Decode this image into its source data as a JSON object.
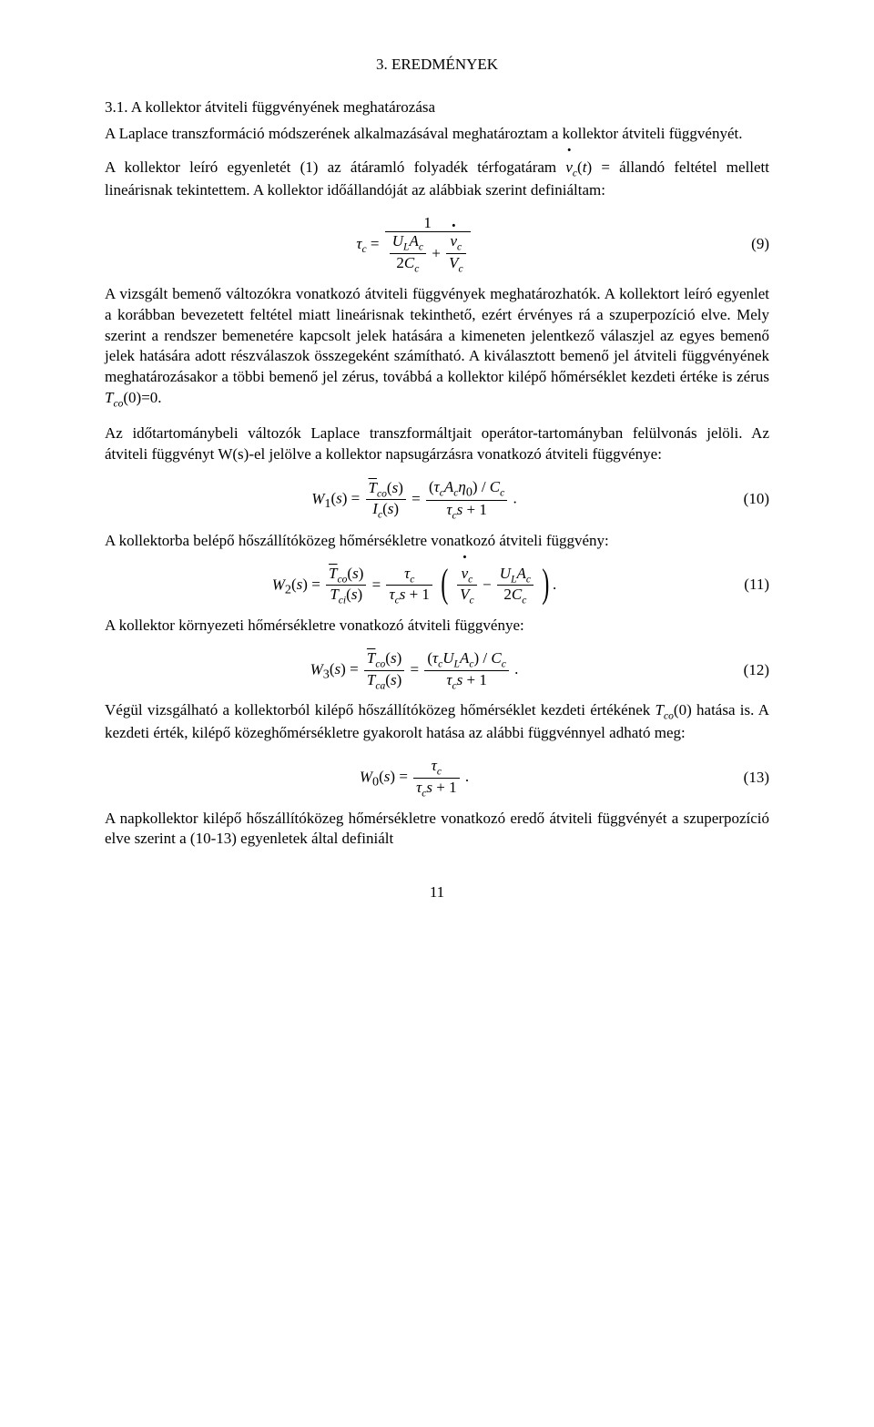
{
  "section_number": "3. EREDMÉNYEK",
  "subsection": "3.1. A kollektor átviteli függvényének meghatározása",
  "p1": "A Laplace transzformáció módszerének alkalmazásával meghatároztam a kollektor átviteli függvényét.",
  "p2a": "A kollektor leíró egyenletét (1) az átáramló folyadék térfogatáram ",
  "p2b": " állandó feltétel mellett lineárisnak tekintettem. A kollektor időállandóját az alábbiak szerint definiáltam:",
  "eq9_num": "(9)",
  "p3": "A vizsgált bemenő változókra vonatkozó átviteli függvények meghatározhatók. A kollektort leíró egyenlet a korábban bevezetett feltétel miatt lineárisnak tekinthető, ezért érvényes rá a szuperpozíció elve. Mely szerint a rendszer bemenetére kapcsolt jelek hatására a kimeneten jelentkező válaszjel az egyes bemenő jelek hatására adott részválaszok összegeként számítható. A kiválasztott bemenő jel átviteli függvényének meghatározásakor a többi bemenő jel zérus, továbbá a kollektor kilépő hőmérséklet kezdeti értéke is zérus ",
  "p3_tail": "(0)=0.",
  "p4": "Az időtartománybeli változók Laplace transzformáltjait operátor-tartományban felülvonás jelöli. Az átviteli függvényt W(s)-el jelölve a kollektor napsugárzásra vonatkozó átviteli függvénye:",
  "eq10_num": "(10)",
  "p5": "A kollektorba belépő hőszállítóközeg hőmérsékletre vonatkozó átviteli függvény:",
  "eq11_num": "(11)",
  "p6": "A kollektor környezeti hőmérsékletre vonatkozó átviteli függvénye:",
  "eq12_num": "(12)",
  "p7a": "Végül vizsgálható a kollektorból kilépő hőszállítóközeg hőmérséklet kezdeti értékének ",
  "p7b": "(0) hatása is. A kezdeti érték, kilépő közeghőmérsékletre gyakorolt hatása az alábbi függvénnyel adható meg:",
  "eq13_num": "(13)",
  "p8": "A napkollektor kilépő hőszállítóközeg hőmérsékletre vonatkozó eredő átviteli függvényét a szuperpozíció elve szerint a (10-13) egyenletek által definiált",
  "page_number": "11"
}
